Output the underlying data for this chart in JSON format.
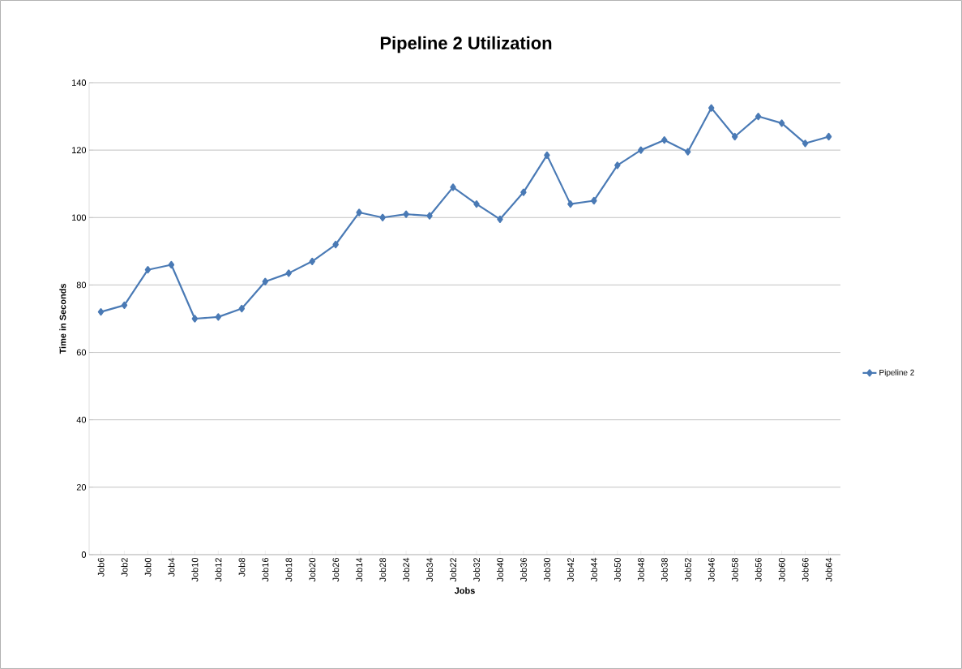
{
  "chart_data": {
    "type": "line",
    "title": "Pipeline 2 Utilization",
    "xlabel": "Jobs",
    "ylabel": "Time in Seconds",
    "categories": [
      "Job6",
      "Job2",
      "Job0",
      "Job4",
      "Job10",
      "Job12",
      "Job8",
      "Job16",
      "Job18",
      "Job20",
      "Job26",
      "Job14",
      "Job28",
      "Job24",
      "Job34",
      "Job22",
      "Job32",
      "Job40",
      "Job36",
      "Job30",
      "Job42",
      "Job44",
      "Job50",
      "Job48",
      "Job38",
      "Job52",
      "Job46",
      "Job58",
      "Job56",
      "Job60",
      "Job66",
      "Job64"
    ],
    "series": [
      {
        "name": "Pipeline 2",
        "color": "#4a7ab5",
        "values": [
          72,
          74,
          84.5,
          86,
          70,
          70.5,
          73,
          81,
          83.5,
          87,
          92,
          101.5,
          100,
          101,
          100.5,
          109,
          104,
          99.5,
          107.5,
          118.5,
          104,
          105,
          115.5,
          120,
          123,
          119.5,
          132.5,
          124,
          130,
          128,
          122,
          124
        ]
      }
    ],
    "ylim": [
      0,
      140
    ],
    "yticks": [
      0,
      20,
      40,
      60,
      80,
      100,
      120,
      140
    ],
    "grid": "y",
    "legend": "right",
    "marker": "diamond",
    "line_style": "solid"
  }
}
